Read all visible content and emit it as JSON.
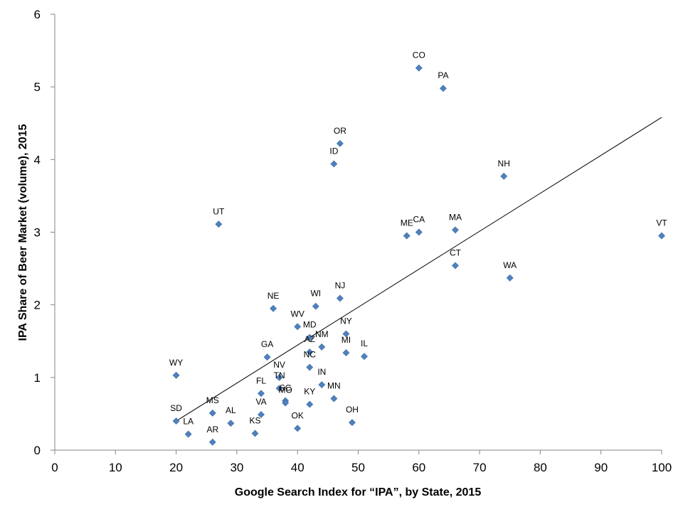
{
  "chart_data": {
    "type": "scatter",
    "title": "",
    "xlabel": "Google Search Index for “IPA”, by State, 2015",
    "ylabel": "IPA Share of Beer Market (volume), 2015",
    "xlim": [
      0,
      100
    ],
    "ylim": [
      0,
      6
    ],
    "xticks": [
      0,
      10,
      20,
      30,
      40,
      50,
      60,
      70,
      80,
      90,
      100
    ],
    "yticks": [
      0,
      1,
      2,
      3,
      4,
      5,
      6
    ],
    "grid": false,
    "marker_color": "#4f81bd",
    "trendline": {
      "type": "linear",
      "x": [
        20,
        100
      ],
      "y": [
        0.4,
        4.58
      ],
      "color": "#000000"
    },
    "points": [
      {
        "label": "CO",
        "x": 60,
        "y": 5.26
      },
      {
        "label": "PA",
        "x": 64,
        "y": 4.98
      },
      {
        "label": "OR",
        "x": 47,
        "y": 4.22
      },
      {
        "label": "ID",
        "x": 46,
        "y": 3.94
      },
      {
        "label": "NH",
        "x": 74,
        "y": 3.77
      },
      {
        "label": "UT",
        "x": 27,
        "y": 3.11
      },
      {
        "label": "ME",
        "x": 58,
        "y": 2.95
      },
      {
        "label": "CA",
        "x": 60,
        "y": 3.0
      },
      {
        "label": "MA",
        "x": 66,
        "y": 3.03
      },
      {
        "label": "VT",
        "x": 100,
        "y": 2.95
      },
      {
        "label": "CT",
        "x": 66,
        "y": 2.54
      },
      {
        "label": "WA",
        "x": 75,
        "y": 2.37
      },
      {
        "label": "NJ",
        "x": 47,
        "y": 2.09
      },
      {
        "label": "WI",
        "x": 43,
        "y": 1.98
      },
      {
        "label": "NE",
        "x": 36,
        "y": 1.95
      },
      {
        "label": "WV",
        "x": 40,
        "y": 1.7
      },
      {
        "label": "MD",
        "x": 42,
        "y": 1.55
      },
      {
        "label": "NY",
        "x": 48,
        "y": 1.6
      },
      {
        "label": "NM",
        "x": 44,
        "y": 1.42
      },
      {
        "label": "AZ",
        "x": 42,
        "y": 1.35
      },
      {
        "label": "MI",
        "x": 48,
        "y": 1.34
      },
      {
        "label": "IL",
        "x": 51,
        "y": 1.29
      },
      {
        "label": "GA",
        "x": 35,
        "y": 1.28
      },
      {
        "label": "NC",
        "x": 42,
        "y": 1.14
      },
      {
        "label": "WY",
        "x": 20,
        "y": 1.03
      },
      {
        "label": "NV",
        "x": 37,
        "y": 1.0
      },
      {
        "label": "IN",
        "x": 44,
        "y": 0.9
      },
      {
        "label": "TN",
        "x": 37,
        "y": 0.85
      },
      {
        "label": "FL",
        "x": 34,
        "y": 0.78
      },
      {
        "label": "SC",
        "x": 38,
        "y": 0.68
      },
      {
        "label": "MO",
        "x": 38,
        "y": 0.65
      },
      {
        "label": "MN",
        "x": 46,
        "y": 0.71
      },
      {
        "label": "KY",
        "x": 42,
        "y": 0.63
      },
      {
        "label": "MS",
        "x": 26,
        "y": 0.51
      },
      {
        "label": "VA",
        "x": 34,
        "y": 0.49
      },
      {
        "label": "SD",
        "x": 20,
        "y": 0.4
      },
      {
        "label": "AL",
        "x": 29,
        "y": 0.37
      },
      {
        "label": "OH",
        "x": 49,
        "y": 0.38
      },
      {
        "label": "OK",
        "x": 40,
        "y": 0.3
      },
      {
        "label": "KS",
        "x": 33,
        "y": 0.23
      },
      {
        "label": "LA",
        "x": 22,
        "y": 0.22
      },
      {
        "label": "AR",
        "x": 26,
        "y": 0.11
      }
    ]
  }
}
